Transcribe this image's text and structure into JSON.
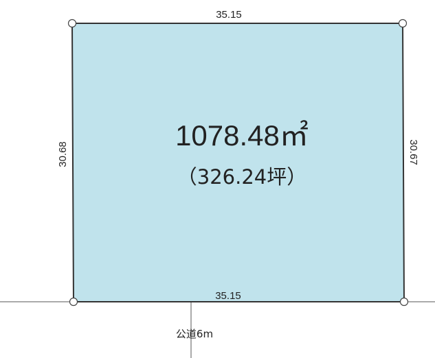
{
  "lot": {
    "top_length": "35.15",
    "bottom_length": "35.15",
    "left_length": "30.68",
    "right_length": "30.67",
    "area_sqm": "1078.48",
    "area_unit": "㎡",
    "area_tsubo": "（326.24坪）",
    "fill_color": "#c0e3ec"
  },
  "road": {
    "label": "公道6m"
  }
}
